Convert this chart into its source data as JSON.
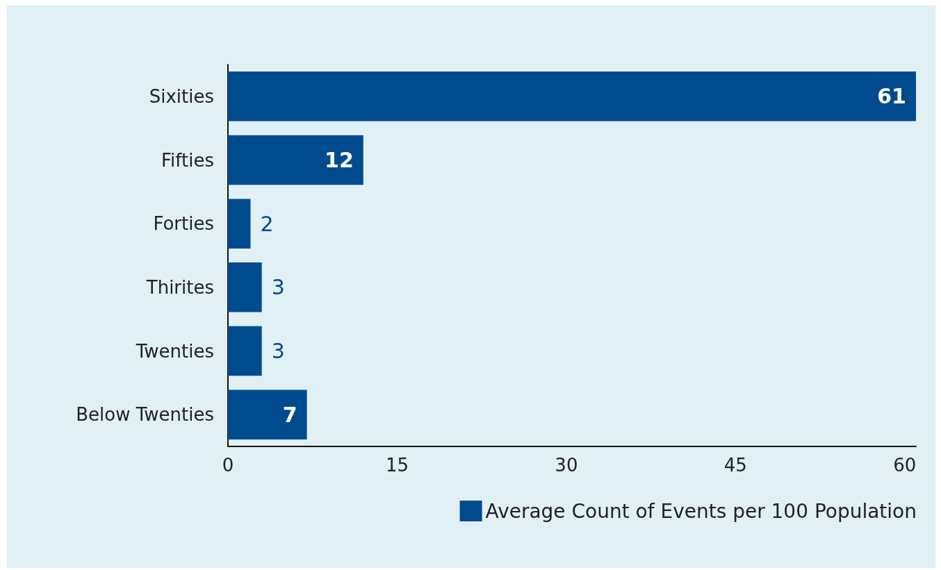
{
  "chart_data": {
    "type": "bar",
    "orientation": "horizontal",
    "categories": [
      "Sixities",
      "Fifties",
      "Forties",
      "Thirites",
      "Twenties",
      "Below Twenties"
    ],
    "series": [
      {
        "name": "Average Count of Events per 100 Population",
        "color": "#004b8d",
        "values": [
          61,
          12,
          2,
          3,
          3,
          7
        ]
      }
    ],
    "xlim": [
      0,
      61
    ],
    "xticks": [
      0,
      15,
      30,
      45,
      60
    ],
    "grid": false,
    "legend": "bottom right",
    "data_labels": true
  }
}
